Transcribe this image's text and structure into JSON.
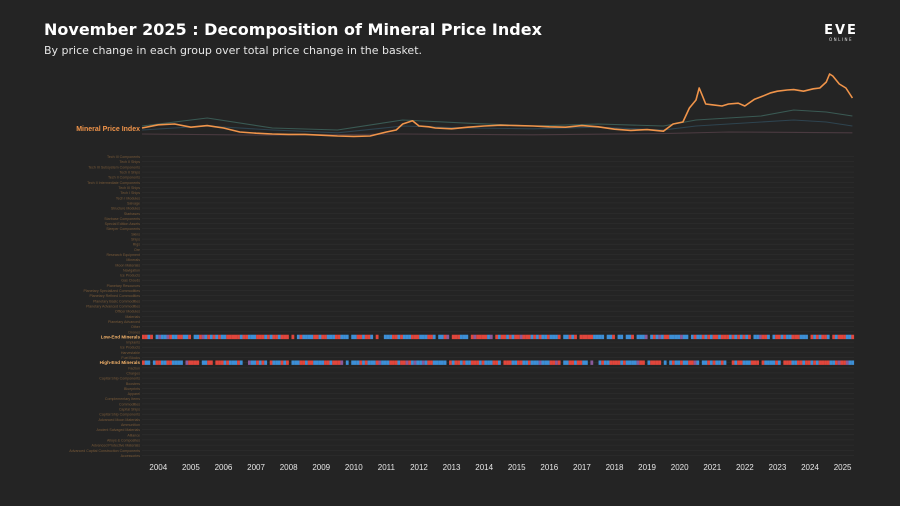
{
  "header": {
    "title": "November 2025 : Decomposition of Mineral Price Index",
    "subtitle": "By price change in each group over total price change in the basket."
  },
  "logo": {
    "main": "EVE",
    "sub": "ONLINE"
  },
  "colors": {
    "background": "#242424",
    "index_line": "#f0944a",
    "label_orange": "#f0944a",
    "label_dim": "#7a5a38",
    "highlight_label": "#f5b36a",
    "increase": "#e0463c",
    "decrease": "#3d8fd6",
    "gridline": "#2f2f2f",
    "axis_text": "#e6e6e6"
  },
  "chart_data": {
    "type": "line",
    "x_start": "2004-01",
    "x_end": "2025-11",
    "xticks": [
      "2004",
      "2005",
      "2006",
      "2007",
      "2008",
      "2009",
      "2010",
      "2011",
      "2012",
      "2013",
      "2014",
      "2015",
      "2016",
      "2017",
      "2018",
      "2019",
      "2020",
      "2021",
      "2022",
      "2023",
      "2024",
      "2025"
    ],
    "series": [
      {
        "name": "Mineral Price Index",
        "color": "#f0944a",
        "x": [
          2004.0,
          2004.5,
          2005.0,
          2005.5,
          2006.0,
          2006.5,
          2007.0,
          2007.5,
          2008.0,
          2008.5,
          2009.0,
          2009.5,
          2010.0,
          2010.5,
          2011.0,
          2011.5,
          2011.8,
          2012.0,
          2012.3,
          2012.5,
          2012.8,
          2013.0,
          2013.5,
          2014.0,
          2014.5,
          2015.0,
          2015.5,
          2016.0,
          2016.5,
          2017.0,
          2017.5,
          2018.0,
          2018.5,
          2019.0,
          2019.5,
          2020.0,
          2020.3,
          2020.6,
          2020.8,
          2021.0,
          2021.1,
          2021.2,
          2021.3,
          2021.5,
          2021.8,
          2022.0,
          2022.3,
          2022.5,
          2022.8,
          2023.0,
          2023.3,
          2023.5,
          2023.8,
          2024.0,
          2024.3,
          2024.6,
          2024.8,
          2025.0,
          2025.1,
          2025.2,
          2025.4,
          2025.6,
          2025.8
        ],
        "y": [
          1.0,
          1.08,
          1.1,
          1.02,
          1.06,
          1.0,
          0.9,
          0.87,
          0.85,
          0.84,
          0.84,
          0.82,
          0.8,
          0.79,
          0.8,
          0.9,
          0.95,
          1.1,
          1.18,
          1.05,
          1.03,
          1.0,
          0.98,
          1.02,
          1.05,
          1.07,
          1.06,
          1.05,
          1.03,
          1.02,
          1.06,
          1.03,
          0.97,
          0.94,
          0.96,
          0.92,
          1.1,
          1.15,
          1.5,
          1.7,
          2.0,
          1.8,
          1.6,
          1.58,
          1.55,
          1.6,
          1.62,
          1.55,
          1.72,
          1.78,
          1.88,
          1.92,
          1.95,
          1.96,
          1.92,
          1.98,
          2.0,
          2.15,
          2.35,
          2.3,
          2.1,
          2.0,
          1.75
        ]
      },
      {
        "name": "",
        "color": "#3a5a54",
        "x": [
          2004.0,
          2006.0,
          2008.0,
          2010.0,
          2012.0,
          2014.0,
          2016.0,
          2018.0,
          2020.0,
          2021.0,
          2022.0,
          2023.0,
          2024.0,
          2025.0,
          2025.8
        ],
        "y": [
          1.05,
          1.25,
          1.0,
          0.95,
          1.2,
          1.12,
          1.05,
          1.1,
          1.05,
          1.2,
          1.25,
          1.3,
          1.45,
          1.4,
          1.3
        ]
      },
      {
        "name": "",
        "color": "#2e4450",
        "x": [
          2004.0,
          2006.0,
          2008.0,
          2010.0,
          2012.0,
          2014.0,
          2016.0,
          2018.0,
          2020.0,
          2021.0,
          2022.0,
          2023.0,
          2024.0,
          2025.0,
          2025.8
        ],
        "y": [
          0.95,
          1.05,
          0.95,
          0.88,
          1.05,
          1.0,
          0.98,
          1.02,
          0.95,
          1.05,
          1.1,
          1.15,
          1.2,
          1.15,
          1.05
        ]
      },
      {
        "name": "",
        "color": "#4a3a40",
        "x": [
          2004.0,
          2008.0,
          2012.0,
          2016.0,
          2020.0,
          2022.0,
          2025.8
        ],
        "y": [
          0.85,
          0.82,
          0.85,
          0.83,
          0.86,
          0.9,
          0.88
        ]
      }
    ],
    "ylim": [
      0.7,
      2.45
    ],
    "heatmap": {
      "rows": [
        "Tech III Components",
        "Tech II Ships",
        "Tech III Subsystem Components",
        "Tech II Ships",
        "Tech II Components",
        "Tech II Intermediate Components",
        "Tech III Ships",
        "Tech I Ships",
        "Tech I Modules",
        "Salvage",
        "Structure Modules",
        "Starbases",
        "Starbase Components",
        "Special Edition Assets",
        "Sleeper Components",
        "Skins",
        "Ships",
        "Rigs",
        "Ore",
        "Research Equipment",
        "Minerals",
        "Moon Materials",
        "Navigation",
        "Ice Products",
        "Gas Clouds",
        "Planetary Resources",
        "Planetary Specialized Commodities",
        "Planetary Refined Commodities",
        "Planetary Basic Commodities",
        "Planetary Advanced Commodities",
        "Officer Modules",
        "Materials",
        "Planetary Advanced",
        "Other",
        "Drones",
        "Low-End Minerals",
        "Implants",
        "Ice Products",
        "Harvestable",
        "Fuel Blocks",
        "High-End Minerals",
        "Faction",
        "Charges",
        "Capital Ship Components",
        "Boosters",
        "Blueprints",
        "Apparel",
        "Complementary Items",
        "Commodities",
        "Capital Ships",
        "Capital Ship Components",
        "Advanced Moon Materials",
        "Ammunition",
        "Ancient Salvaged Materials",
        "Alliance",
        "Alloys & Composites",
        "Advanced Protective Materials",
        "Advanced Capital Construction Components",
        "Accessories"
      ],
      "highlight_rows": [
        "Low-End Minerals",
        "High-End Minerals"
      ]
    }
  }
}
